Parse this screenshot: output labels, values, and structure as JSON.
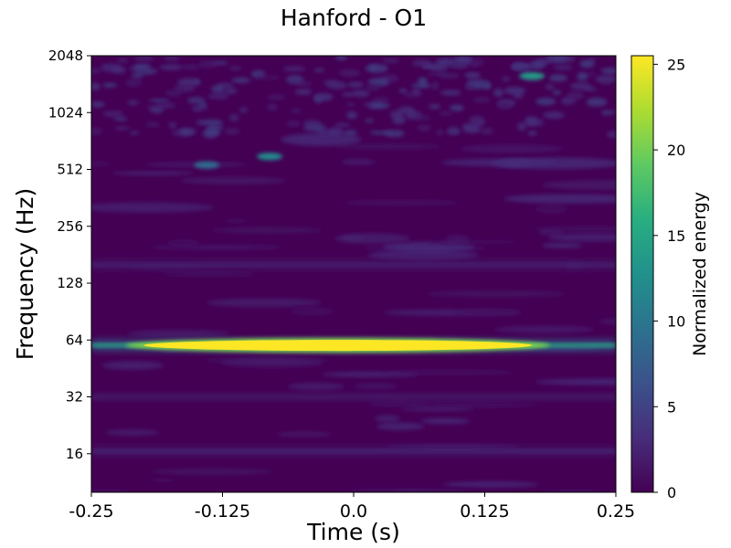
{
  "chart_data": {
    "type": "heatmap",
    "title": "Hanford - O1",
    "xlabel": "Time (s)",
    "ylabel": "Frequency (Hz)",
    "xlim": [
      -0.25,
      0.25
    ],
    "ylim": [
      10,
      2048
    ],
    "yscale": "log2",
    "x_ticks": [
      -0.25,
      -0.125,
      0.0,
      0.125,
      0.25
    ],
    "x_tick_labels": [
      "-0.25",
      "-0.125",
      "0.0",
      "0.125",
      "0.25"
    ],
    "y_ticks": [
      16,
      32,
      64,
      128,
      256,
      512,
      1024,
      2048
    ],
    "y_tick_labels": [
      "16",
      "32",
      "64",
      "128",
      "256",
      "512",
      "1024",
      "2048"
    ],
    "colorbar": {
      "label": "Normalized energy",
      "range": [
        0,
        25.5
      ],
      "ticks": [
        0,
        5,
        10,
        15,
        20,
        25
      ],
      "tick_labels": [
        "0",
        "5",
        "10",
        "15",
        "20",
        "25"
      ],
      "colormap": "viridis"
    },
    "features": [
      {
        "kind": "band",
        "center_freq": 60,
        "x_from": -0.25,
        "x_to": 0.25,
        "peak_energy": 25.5,
        "full_from": -0.2,
        "full_to": 0.17
      },
      {
        "kind": "band",
        "center_freq": 16.5,
        "x_from": -0.25,
        "x_to": 0.25,
        "peak_energy": 4.5
      },
      {
        "kind": "band",
        "center_freq": 32,
        "x_from": -0.25,
        "x_to": 0.25,
        "peak_energy": 3.0
      },
      {
        "kind": "band",
        "center_freq": 160,
        "x_from": -0.25,
        "x_to": 0.25,
        "peak_energy": 4.0
      },
      {
        "kind": "blob",
        "x": -0.14,
        "freq": 540,
        "energy": 9.0
      },
      {
        "kind": "blob",
        "x": -0.08,
        "freq": 600,
        "energy": 12.0
      },
      {
        "kind": "blob",
        "x": 0.17,
        "freq": 1600,
        "energy": 14.0
      }
    ]
  }
}
